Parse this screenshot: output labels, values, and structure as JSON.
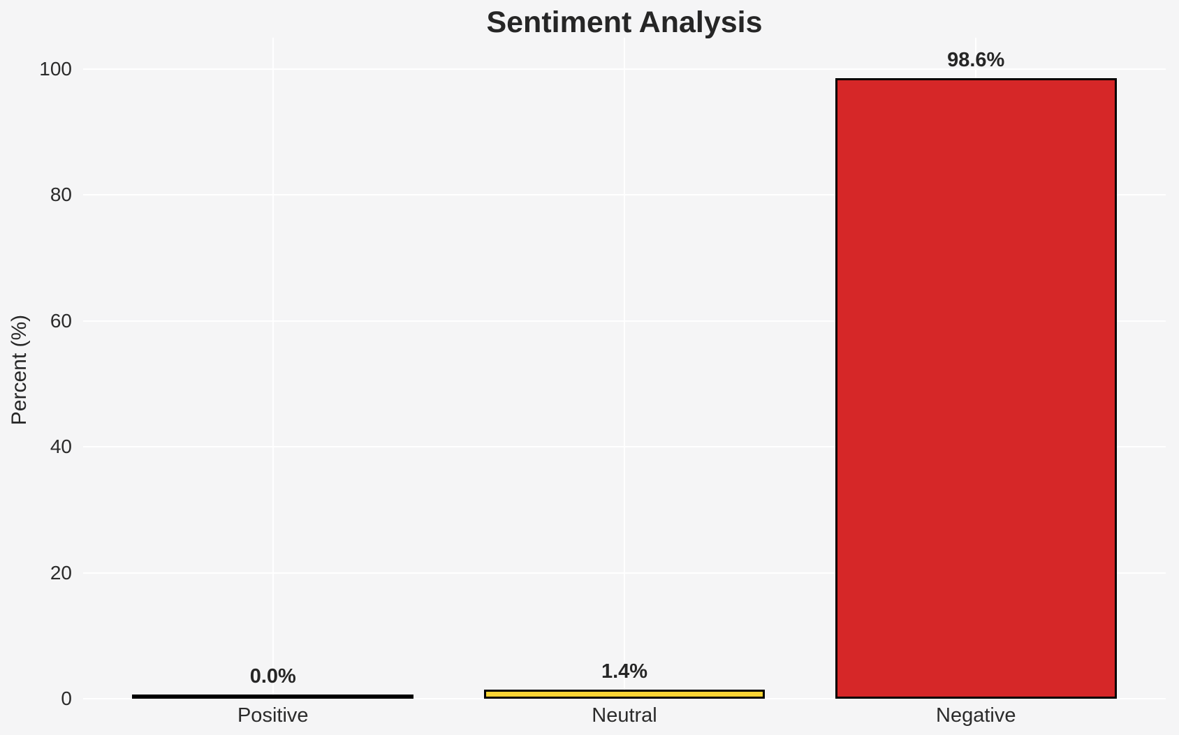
{
  "title": "Sentiment Analysis",
  "chart_data": {
    "type": "bar",
    "title": "Sentiment Analysis",
    "categories": [
      "Positive",
      "Neutral",
      "Negative"
    ],
    "values": [
      0.0,
      1.4,
      98.6
    ],
    "value_labels": [
      "0.0%",
      "1.4%",
      "98.6%"
    ],
    "bar_colors": [
      "none",
      "#fcd535",
      "#d62728"
    ],
    "bar_edge_color": "#000000",
    "xlabel": "",
    "ylabel": "Percent (%)",
    "yticks": [
      0,
      20,
      40,
      60,
      80,
      100
    ],
    "ytick_labels": [
      "0",
      "20",
      "40",
      "60",
      "80",
      "100"
    ],
    "ylim": [
      0,
      105
    ],
    "xlim": [
      -0.54,
      2.54
    ],
    "bar_width": 0.8,
    "grid": true,
    "grid_color": "#ffffff",
    "background_color": "#f5f5f6",
    "text_color": "#262626",
    "legend": "none"
  }
}
